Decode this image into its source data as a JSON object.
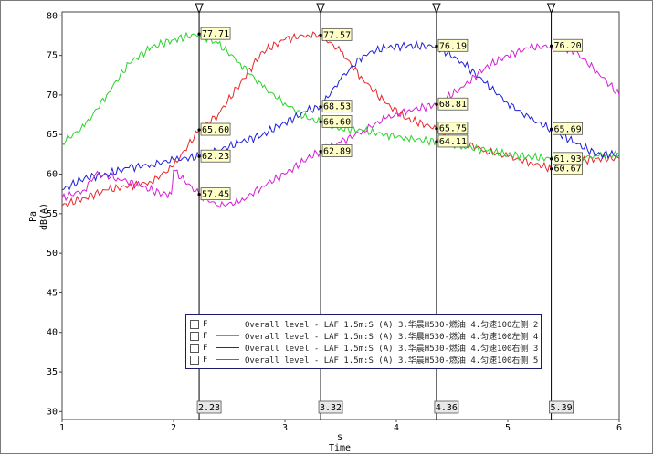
{
  "chart_data": {
    "type": "line",
    "xlabel_unit": "s",
    "xlabel": "Time",
    "ylabel_unit": "Pa",
    "ylabel": "dB(A)",
    "xlim": [
      1,
      6
    ],
    "ylim": [
      29,
      80.5
    ],
    "x_ticks": [
      "1",
      "2",
      "3",
      "4",
      "5",
      "6"
    ],
    "y_ticks": [
      "30",
      "35",
      "40",
      "45",
      "50",
      "55",
      "60",
      "65",
      "70",
      "75",
      "80"
    ],
    "grid": true,
    "legend_position": "bottom-center",
    "series": [
      {
        "name": "Overall level - LAF 1.5m:S (A) 3.华晨H530-燃油 4.匀速100左侧 2",
        "flag": "F",
        "color": "#e8262a",
        "x": [
          1.0,
          1.2,
          1.4,
          1.6,
          1.8,
          2.0,
          2.23,
          2.4,
          2.6,
          2.8,
          3.0,
          3.2,
          3.32,
          3.5,
          3.7,
          3.9,
          4.1,
          4.36,
          4.6,
          4.8,
          5.0,
          5.2,
          5.39,
          5.6,
          5.8,
          6.0
        ],
        "y": [
          56.0,
          57.0,
          58.0,
          58.5,
          59.0,
          61.0,
          65.6,
          67.5,
          71.5,
          75.5,
          77.0,
          77.6,
          77.57,
          75.5,
          72.0,
          69.0,
          67.0,
          65.75,
          64.0,
          63.0,
          62.2,
          61.5,
          60.67,
          61.5,
          62.0,
          62.0
        ]
      },
      {
        "name": "Overall level - LAF 1.5m:S (A) 3.华晨H530-燃油 4.匀速100左侧 4",
        "flag": "F",
        "color": "#2bd12b",
        "x": [
          1.0,
          1.2,
          1.4,
          1.6,
          1.8,
          2.0,
          2.23,
          2.4,
          2.6,
          2.8,
          3.0,
          3.2,
          3.32,
          3.5,
          3.7,
          3.9,
          4.1,
          4.36,
          4.6,
          4.8,
          5.0,
          5.2,
          5.39,
          5.6,
          5.8,
          6.0
        ],
        "y": [
          64.0,
          66.0,
          70.0,
          74.0,
          76.0,
          77.0,
          77.71,
          76.5,
          74.0,
          71.0,
          69.0,
          67.0,
          66.6,
          65.8,
          65.5,
          65.0,
          64.5,
          64.11,
          63.5,
          63.0,
          62.5,
          62.2,
          61.93,
          62.0,
          62.3,
          62.5
        ]
      },
      {
        "name": "Overall level - LAF 1.5m:S (A) 3.华晨H530-燃油 4.匀速100右侧 3",
        "flag": "F",
        "color": "#1f1fd6",
        "x": [
          1.0,
          1.2,
          1.4,
          1.6,
          1.8,
          2.0,
          2.23,
          2.4,
          2.6,
          2.8,
          3.0,
          3.2,
          3.32,
          3.5,
          3.7,
          3.9,
          4.1,
          4.36,
          4.6,
          4.8,
          5.0,
          5.2,
          5.39,
          5.6,
          5.8,
          6.0
        ],
        "y": [
          58.0,
          59.5,
          60.0,
          60.8,
          61.2,
          61.8,
          62.23,
          63.0,
          64.0,
          65.0,
          66.5,
          68.0,
          68.53,
          72.0,
          75.0,
          76.0,
          76.2,
          76.19,
          74.0,
          71.5,
          69.0,
          67.0,
          65.69,
          64.0,
          62.5,
          62.5
        ]
      },
      {
        "name": "Overall level - LAF 1.5m:S (A) 3.华晨H530-燃油 4.匀速100右侧 5",
        "flag": "F",
        "color": "#d61fd6",
        "x": [
          1.0,
          1.2,
          1.3,
          1.5,
          1.7,
          1.9,
          1.98,
          2.0,
          2.23,
          2.4,
          2.6,
          2.8,
          3.0,
          3.2,
          3.32,
          3.5,
          3.7,
          3.9,
          4.1,
          4.36,
          4.6,
          4.8,
          5.0,
          5.2,
          5.39,
          5.6,
          5.8,
          6.0
        ],
        "y": [
          57.0,
          58.0,
          60.0,
          59.5,
          58.5,
          57.5,
          57.5,
          60.5,
          57.45,
          56.0,
          56.5,
          58.5,
          60.0,
          62.0,
          62.89,
          64.0,
          65.5,
          67.0,
          68.0,
          68.81,
          71.0,
          73.5,
          75.0,
          76.0,
          76.2,
          75.5,
          73.0,
          70.0
        ]
      }
    ],
    "cursors": [
      {
        "x": 2.23,
        "label": "2.23",
        "values": [
          {
            "series": 0,
            "text": "65.60",
            "y": 65.6
          },
          {
            "series": 1,
            "text": "77.71",
            "y": 77.71
          },
          {
            "series": 2,
            "text": "62.23",
            "y": 62.23
          },
          {
            "series": 3,
            "text": "57.45",
            "y": 57.45
          }
        ]
      },
      {
        "x": 3.32,
        "label": "3.32",
        "values": [
          {
            "series": 0,
            "text": "77.57",
            "y": 77.57
          },
          {
            "series": 1,
            "text": "66.60",
            "y": 66.6
          },
          {
            "series": 2,
            "text": "68.53",
            "y": 68.53
          },
          {
            "series": 3,
            "text": "62.89",
            "y": 62.89
          }
        ]
      },
      {
        "x": 4.36,
        "label": "4.36",
        "values": [
          {
            "series": 0,
            "text": "65.75",
            "y": 65.75
          },
          {
            "series": 1,
            "text": "64.11",
            "y": 64.11
          },
          {
            "series": 2,
            "text": "76.19",
            "y": 76.19
          },
          {
            "series": 3,
            "text": "68.81",
            "y": 68.81
          }
        ]
      },
      {
        "x": 5.39,
        "label": "5.39",
        "values": [
          {
            "series": 0,
            "text": "60.67",
            "y": 60.67
          },
          {
            "series": 1,
            "text": "61.93",
            "y": 61.93
          },
          {
            "series": 2,
            "text": "65.69",
            "y": 65.69
          },
          {
            "series": 3,
            "text": "76.20",
            "y": 76.2
          }
        ]
      }
    ]
  }
}
